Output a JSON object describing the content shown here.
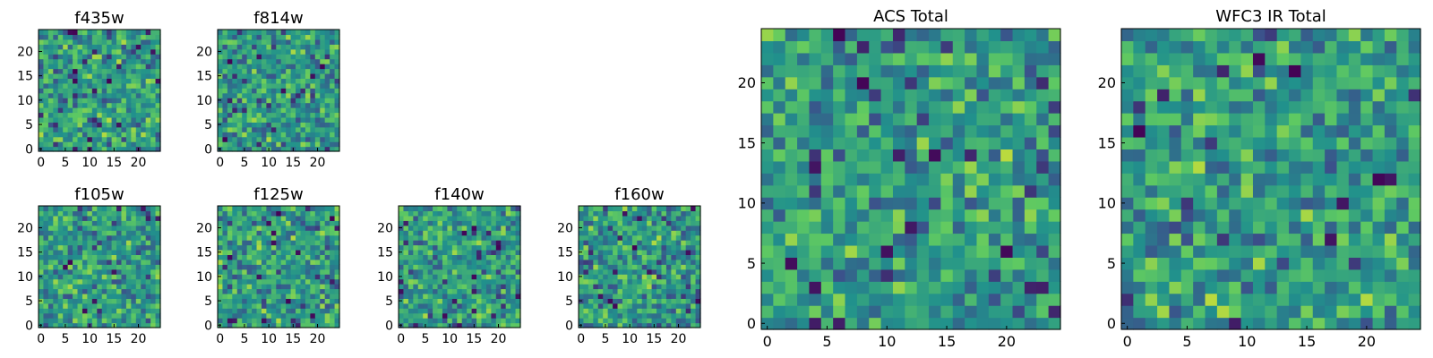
{
  "chart_data": [
    {
      "type": "heatmap",
      "title": "f435w",
      "size": 25,
      "xticks": [
        0,
        5,
        10,
        15,
        20
      ],
      "yticks": [
        0,
        5,
        10,
        15,
        20
      ],
      "seed": 11
    },
    {
      "type": "heatmap",
      "title": "f814w",
      "size": 25,
      "xticks": [
        0,
        5,
        10,
        15,
        20
      ],
      "yticks": [
        0,
        5,
        10,
        15,
        20
      ],
      "seed": 23
    },
    {
      "type": "heatmap",
      "title": "f105w",
      "size": 25,
      "xticks": [
        0,
        5,
        10,
        15,
        20
      ],
      "yticks": [
        0,
        5,
        10,
        15,
        20
      ],
      "seed": 37
    },
    {
      "type": "heatmap",
      "title": "f125w",
      "size": 25,
      "xticks": [
        0,
        5,
        10,
        15,
        20
      ],
      "yticks": [
        0,
        5,
        10,
        15,
        20
      ],
      "seed": 41
    },
    {
      "type": "heatmap",
      "title": "f140w",
      "size": 25,
      "xticks": [
        0,
        5,
        10,
        15,
        20
      ],
      "yticks": [
        0,
        5,
        10,
        15,
        20
      ],
      "seed": 53
    },
    {
      "type": "heatmap",
      "title": "f160w",
      "size": 25,
      "xticks": [
        0,
        5,
        10,
        15,
        20
      ],
      "yticks": [
        0,
        5,
        10,
        15,
        20
      ],
      "seed": 67
    },
    {
      "type": "heatmap",
      "title": "ACS Total",
      "size": 25,
      "xticks": [
        0,
        5,
        10,
        15,
        20
      ],
      "yticks": [
        0,
        5,
        10,
        15,
        20
      ],
      "seed": 79
    },
    {
      "type": "heatmap",
      "title": "WFC3 IR Total",
      "size": 25,
      "xticks": [
        0,
        5,
        10,
        15,
        20
      ],
      "yticks": [
        0,
        5,
        10,
        15,
        20
      ],
      "seed": 97
    }
  ],
  "colormap": [
    "#440154",
    "#3b528b",
    "#21918c",
    "#5ec962",
    "#fde725"
  ]
}
